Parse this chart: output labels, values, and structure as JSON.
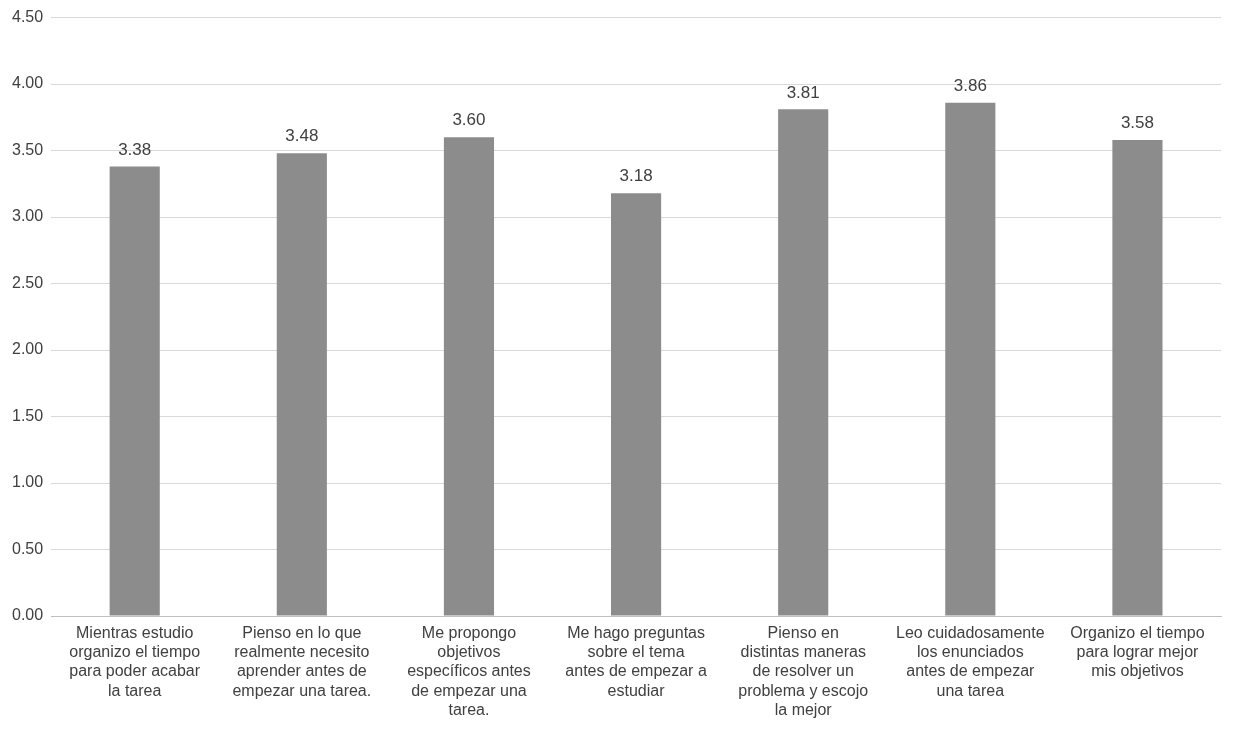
{
  "chart_data": {
    "type": "bar",
    "categories": [
      "Mientras estudio organizo el tiempo para poder acabar la tarea",
      "Pienso en lo que realmente necesito aprender antes de empezar una tarea.",
      "Me propongo objetivos específicos antes de empezar una tarea.",
      "Me hago preguntas sobre el tema antes de empezar a estudiar",
      "Pienso en distintas maneras de resolver un problema y escojo la mejor",
      "Leo cuidadosamente los enunciados antes de empezar una tarea",
      "Organizo el tiempo para lograr mejor mis objetivos"
    ],
    "values": [
      3.38,
      3.48,
      3.6,
      3.18,
      3.81,
      3.86,
      3.58
    ],
    "value_labels": [
      "3.38",
      "3.48",
      "3.60",
      "3.18",
      "3.81",
      "3.86",
      "3.58"
    ],
    "color": "#8c8c8c",
    "ylim": [
      0,
      4.5
    ],
    "yticks": [
      {
        "value": 0,
        "label": "0.00"
      },
      {
        "value": 0.5,
        "label": "0.50"
      },
      {
        "value": 1,
        "label": "1.00"
      },
      {
        "value": 1.5,
        "label": "1.50"
      },
      {
        "value": 2,
        "label": "2.00"
      },
      {
        "value": 2.5,
        "label": "2.50"
      },
      {
        "value": 3,
        "label": "3.00"
      },
      {
        "value": 3.5,
        "label": "3.50"
      },
      {
        "value": 4,
        "label": "4.00"
      },
      {
        "value": 4.5,
        "label": "4.50"
      }
    ],
    "grid": "y"
  }
}
